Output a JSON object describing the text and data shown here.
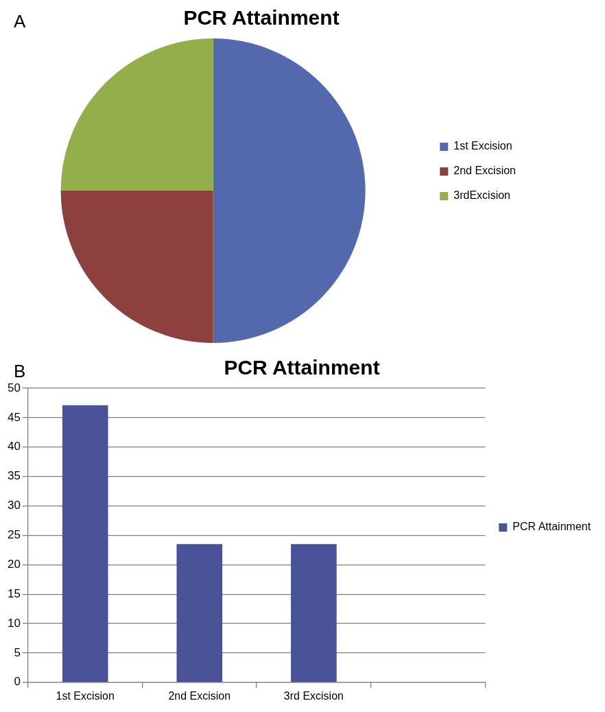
{
  "chart_data": [
    {
      "type": "pie",
      "title": "PCR Attainment",
      "annotations": [
        "A"
      ],
      "categories": [
        "1st Excision",
        "2nd Excision",
        "3rdExcision"
      ],
      "values": [
        50,
        25,
        25
      ],
      "colors": [
        "#5469ad",
        "#8e403f",
        "#94ae4b"
      ],
      "legend": "right"
    },
    {
      "type": "bar",
      "title": "PCR Attainment",
      "annotations": [
        "B"
      ],
      "categories": [
        "1st Excision",
        "2nd Excision",
        "3rd Excision",
        null
      ],
      "series": [
        {
          "name": "PCR Attainment",
          "color": "#4b5398",
          "values": [
            47.1,
            23.5,
            23.5,
            null
          ]
        }
      ],
      "ylim": [
        0,
        50
      ],
      "yticks": [
        0,
        5,
        10,
        15,
        20,
        25,
        30,
        35,
        40,
        45,
        50
      ],
      "grid": "y",
      "legend": "right"
    }
  ]
}
